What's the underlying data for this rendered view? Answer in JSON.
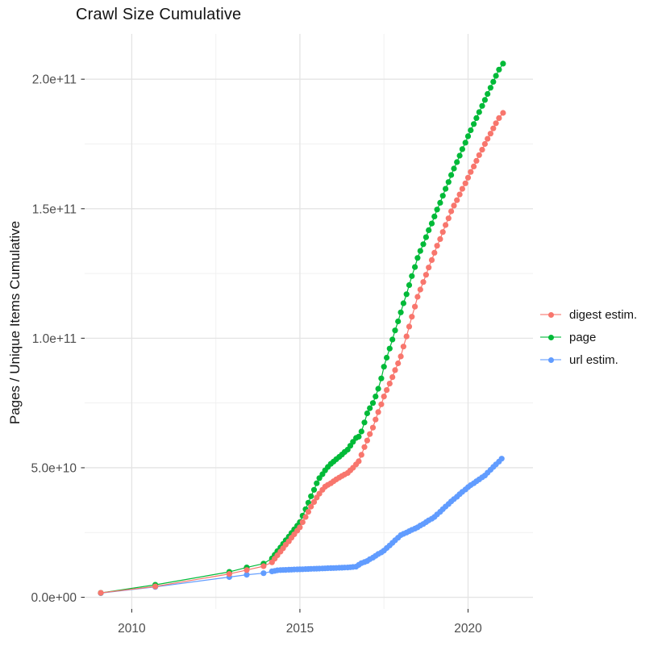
{
  "header": {
    "title": "Crawl Size Cumulative"
  },
  "axes": {
    "y_title": "Pages / Unique Items Cumulative",
    "x_title": ""
  },
  "colors": {
    "background": "#ffffff",
    "grid_major": "#e4e4e4",
    "grid_minor": "#f1f1f1",
    "tick_mark": "#333333",
    "tick_label": "#4d4d4d",
    "digest": "#F8766D",
    "page": "#00BA38",
    "url": "#619CFF"
  },
  "chart_data": {
    "type": "line",
    "title": "Crawl Size Cumulative",
    "xlabel": "",
    "ylabel": "Pages / Unique Items Cumulative",
    "values_unit": "1e9 items (values below are billions; axis shown in scientific notation)",
    "grid": true,
    "legend_position": "right",
    "x_domain": [
      2008.6,
      2021.93
    ],
    "y_domain": [
      -4.5,
      217.5
    ],
    "x_ticks": [
      {
        "value": 2010,
        "label": "2010"
      },
      {
        "value": 2015,
        "label": "2015"
      },
      {
        "value": 2020,
        "label": "2020"
      }
    ],
    "x_minor_ticks": [
      2012.5,
      2017.5
    ],
    "y_ticks": [
      {
        "value": 0,
        "label": "0.0e+00"
      },
      {
        "value": 50,
        "label": "5.0e+10"
      },
      {
        "value": 100,
        "label": "1.0e+11"
      },
      {
        "value": 150,
        "label": "1.5e+11"
      },
      {
        "value": 200,
        "label": "2.0e+11"
      }
    ],
    "y_minor_ticks": [
      25,
      75,
      125,
      175
    ],
    "draw_order": [
      2,
      1,
      0
    ],
    "series": [
      {
        "name": "digest estim.",
        "color": "#F8766D",
        "points": [
          [
            2009.08,
            1.7
          ],
          [
            2010.7,
            4.2
          ],
          [
            2012.9,
            9.0
          ],
          [
            2013.42,
            10.5
          ],
          [
            2013.92,
            12.0
          ],
          [
            2014.17,
            13.5
          ],
          [
            2014.25,
            14.9
          ],
          [
            2014.33,
            16.2
          ],
          [
            2014.42,
            17.6
          ],
          [
            2014.5,
            18.9
          ],
          [
            2014.58,
            20.3
          ],
          [
            2014.67,
            21.6
          ],
          [
            2014.75,
            23.0
          ],
          [
            2014.83,
            24.3
          ],
          [
            2014.92,
            25.7
          ],
          [
            2015.0,
            27.0
          ],
          [
            2015.08,
            29.0
          ],
          [
            2015.17,
            31.0
          ],
          [
            2015.25,
            33.0
          ],
          [
            2015.33,
            35.0
          ],
          [
            2015.42,
            36.8
          ],
          [
            2015.5,
            38.5
          ],
          [
            2015.58,
            40.0
          ],
          [
            2015.67,
            41.5
          ],
          [
            2015.75,
            42.7
          ],
          [
            2015.83,
            43.4
          ],
          [
            2015.92,
            44.0
          ],
          [
            2016.0,
            44.8
          ],
          [
            2016.08,
            45.5
          ],
          [
            2016.17,
            46.2
          ],
          [
            2016.25,
            46.8
          ],
          [
            2016.33,
            47.4
          ],
          [
            2016.42,
            48.0
          ],
          [
            2016.5,
            49.0
          ],
          [
            2016.58,
            50.0
          ],
          [
            2016.67,
            51.3
          ],
          [
            2016.75,
            52.5
          ],
          [
            2016.83,
            55.0
          ],
          [
            2016.92,
            58.0
          ],
          [
            2017.0,
            60.5
          ],
          [
            2017.08,
            63.0
          ],
          [
            2017.17,
            65.5
          ],
          [
            2017.25,
            68.6
          ],
          [
            2017.33,
            71.5
          ],
          [
            2017.42,
            74.5
          ],
          [
            2017.5,
            77.5
          ],
          [
            2017.58,
            80.0
          ],
          [
            2017.67,
            82.5
          ],
          [
            2017.75,
            85.0
          ],
          [
            2017.83,
            87.7
          ],
          [
            2017.92,
            90.3
          ],
          [
            2018.0,
            93.0
          ],
          [
            2018.08,
            96.8
          ],
          [
            2018.17,
            100.7
          ],
          [
            2018.25,
            104.5
          ],
          [
            2018.33,
            108.3
          ],
          [
            2018.42,
            112.2
          ],
          [
            2018.5,
            116.0
          ],
          [
            2018.58,
            118.8
          ],
          [
            2018.67,
            121.7
          ],
          [
            2018.75,
            124.5
          ],
          [
            2018.83,
            127.3
          ],
          [
            2018.92,
            130.2
          ],
          [
            2019.0,
            133.0
          ],
          [
            2019.08,
            135.7
          ],
          [
            2019.17,
            138.3
          ],
          [
            2019.25,
            141.0
          ],
          [
            2019.33,
            143.7
          ],
          [
            2019.42,
            146.3
          ],
          [
            2019.5,
            149.0
          ],
          [
            2019.58,
            151.2
          ],
          [
            2019.67,
            153.3
          ],
          [
            2019.75,
            155.5
          ],
          [
            2019.83,
            157.7
          ],
          [
            2019.92,
            159.8
          ],
          [
            2020.0,
            162.0
          ],
          [
            2020.08,
            164.2
          ],
          [
            2020.17,
            166.3
          ],
          [
            2020.25,
            168.5
          ],
          [
            2020.33,
            170.7
          ],
          [
            2020.42,
            172.8
          ],
          [
            2020.5,
            175.0
          ],
          [
            2020.58,
            177.0
          ],
          [
            2020.67,
            179.0
          ],
          [
            2020.75,
            181.0
          ],
          [
            2020.83,
            183.0
          ],
          [
            2020.92,
            185.0
          ],
          [
            2021.04,
            187.0
          ]
        ]
      },
      {
        "name": "page",
        "color": "#00BA38",
        "points": [
          [
            2009.08,
            1.7
          ],
          [
            2010.7,
            4.8
          ],
          [
            2012.9,
            9.8
          ],
          [
            2013.42,
            11.5
          ],
          [
            2013.92,
            13.0
          ],
          [
            2014.17,
            15.0
          ],
          [
            2014.25,
            16.4
          ],
          [
            2014.33,
            17.8
          ],
          [
            2014.42,
            19.2
          ],
          [
            2014.5,
            20.6
          ],
          [
            2014.58,
            22.0
          ],
          [
            2014.67,
            23.4
          ],
          [
            2014.75,
            24.8
          ],
          [
            2014.83,
            26.2
          ],
          [
            2014.92,
            27.6
          ],
          [
            2015.0,
            29.0
          ],
          [
            2015.08,
            31.5
          ],
          [
            2015.17,
            34.0
          ],
          [
            2015.25,
            36.5
          ],
          [
            2015.33,
            39.0
          ],
          [
            2015.42,
            41.5
          ],
          [
            2015.5,
            44.0
          ],
          [
            2015.58,
            46.0
          ],
          [
            2015.67,
            47.5
          ],
          [
            2015.75,
            49.0
          ],
          [
            2015.83,
            50.3
          ],
          [
            2015.92,
            51.5
          ],
          [
            2016.0,
            52.4
          ],
          [
            2016.08,
            53.3
          ],
          [
            2016.17,
            54.2
          ],
          [
            2016.25,
            55.1
          ],
          [
            2016.33,
            56.1
          ],
          [
            2016.42,
            57.0
          ],
          [
            2016.5,
            58.5
          ],
          [
            2016.58,
            60.0
          ],
          [
            2016.67,
            61.5
          ],
          [
            2016.75,
            62.0
          ],
          [
            2016.83,
            64.0
          ],
          [
            2016.92,
            67.5
          ],
          [
            2017.0,
            71.0
          ],
          [
            2017.08,
            73.0
          ],
          [
            2017.17,
            75.0
          ],
          [
            2017.25,
            77.5
          ],
          [
            2017.33,
            80.5
          ],
          [
            2017.42,
            84.5
          ],
          [
            2017.5,
            89.0
          ],
          [
            2017.58,
            92.5
          ],
          [
            2017.67,
            96.0
          ],
          [
            2017.75,
            99.5
          ],
          [
            2017.83,
            103.0
          ],
          [
            2017.92,
            106.5
          ],
          [
            2018.0,
            110.0
          ],
          [
            2018.08,
            113.5
          ],
          [
            2018.17,
            117.0
          ],
          [
            2018.25,
            120.5
          ],
          [
            2018.33,
            124.0
          ],
          [
            2018.42,
            127.5
          ],
          [
            2018.5,
            131.0
          ],
          [
            2018.58,
            133.7
          ],
          [
            2018.67,
            136.3
          ],
          [
            2018.75,
            139.0
          ],
          [
            2018.83,
            141.7
          ],
          [
            2018.92,
            144.3
          ],
          [
            2019.0,
            147.0
          ],
          [
            2019.08,
            149.7
          ],
          [
            2019.17,
            152.3
          ],
          [
            2019.25,
            155.0
          ],
          [
            2019.33,
            157.7
          ],
          [
            2019.42,
            160.3
          ],
          [
            2019.5,
            163.0
          ],
          [
            2019.58,
            165.5
          ],
          [
            2019.67,
            168.0
          ],
          [
            2019.75,
            170.5
          ],
          [
            2019.83,
            173.0
          ],
          [
            2019.92,
            175.5
          ],
          [
            2020.0,
            178.0
          ],
          [
            2020.08,
            180.3
          ],
          [
            2020.17,
            182.7
          ],
          [
            2020.25,
            185.0
          ],
          [
            2020.33,
            187.3
          ],
          [
            2020.42,
            189.7
          ],
          [
            2020.5,
            192.0
          ],
          [
            2020.58,
            194.3
          ],
          [
            2020.67,
            196.7
          ],
          [
            2020.75,
            199.0
          ],
          [
            2020.83,
            201.3
          ],
          [
            2020.92,
            203.7
          ],
          [
            2021.04,
            206.0
          ]
        ]
      },
      {
        "name": "url estim.",
        "color": "#619CFF",
        "points": [
          [
            2009.08,
            1.6
          ],
          [
            2010.7,
            4.0
          ],
          [
            2012.9,
            7.8
          ],
          [
            2013.42,
            8.7
          ],
          [
            2013.92,
            9.3
          ],
          [
            2014.17,
            10.0
          ],
          [
            2014.25,
            10.2
          ],
          [
            2014.33,
            10.4
          ],
          [
            2014.42,
            10.5
          ],
          [
            2014.5,
            10.54
          ],
          [
            2014.58,
            10.58
          ],
          [
            2014.67,
            10.63
          ],
          [
            2014.75,
            10.67
          ],
          [
            2014.83,
            10.71
          ],
          [
            2014.92,
            10.75
          ],
          [
            2015.0,
            10.79
          ],
          [
            2015.08,
            10.83
          ],
          [
            2015.17,
            10.88
          ],
          [
            2015.25,
            10.92
          ],
          [
            2015.33,
            10.96
          ],
          [
            2015.42,
            11.0
          ],
          [
            2015.5,
            11.04
          ],
          [
            2015.58,
            11.08
          ],
          [
            2015.67,
            11.13
          ],
          [
            2015.75,
            11.17
          ],
          [
            2015.83,
            11.21
          ],
          [
            2015.92,
            11.25
          ],
          [
            2016.0,
            11.29
          ],
          [
            2016.08,
            11.33
          ],
          [
            2016.17,
            11.38
          ],
          [
            2016.25,
            11.42
          ],
          [
            2016.33,
            11.46
          ],
          [
            2016.42,
            11.5
          ],
          [
            2016.5,
            11.6
          ],
          [
            2016.58,
            11.7
          ],
          [
            2016.67,
            11.8
          ],
          [
            2016.75,
            12.5
          ],
          [
            2016.83,
            13.2
          ],
          [
            2016.92,
            13.6
          ],
          [
            2017.0,
            14.0
          ],
          [
            2017.08,
            14.7
          ],
          [
            2017.17,
            15.3
          ],
          [
            2017.25,
            16.0
          ],
          [
            2017.33,
            16.7
          ],
          [
            2017.42,
            17.3
          ],
          [
            2017.5,
            18.0
          ],
          [
            2017.58,
            19.0
          ],
          [
            2017.67,
            20.0
          ],
          [
            2017.75,
            21.0
          ],
          [
            2017.83,
            22.0
          ],
          [
            2017.92,
            23.0
          ],
          [
            2018.0,
            24.0
          ],
          [
            2018.08,
            24.5
          ],
          [
            2018.17,
            25.0
          ],
          [
            2018.25,
            25.5
          ],
          [
            2018.33,
            26.0
          ],
          [
            2018.42,
            26.5
          ],
          [
            2018.5,
            27.0
          ],
          [
            2018.58,
            27.7
          ],
          [
            2018.67,
            28.3
          ],
          [
            2018.75,
            29.0
          ],
          [
            2018.83,
            29.7
          ],
          [
            2018.92,
            30.3
          ],
          [
            2019.0,
            31.0
          ],
          [
            2019.08,
            32.0
          ],
          [
            2019.17,
            33.0
          ],
          [
            2019.25,
            34.0
          ],
          [
            2019.33,
            35.0
          ],
          [
            2019.42,
            36.0
          ],
          [
            2019.5,
            37.0
          ],
          [
            2019.58,
            37.9
          ],
          [
            2019.67,
            38.8
          ],
          [
            2019.75,
            39.8
          ],
          [
            2019.83,
            40.7
          ],
          [
            2019.92,
            41.6
          ],
          [
            2020.0,
            42.5
          ],
          [
            2020.08,
            43.3
          ],
          [
            2020.17,
            44.0
          ],
          [
            2020.25,
            44.8
          ],
          [
            2020.33,
            45.5
          ],
          [
            2020.42,
            46.3
          ],
          [
            2020.5,
            47.0
          ],
          [
            2020.58,
            48.1
          ],
          [
            2020.67,
            49.2
          ],
          [
            2020.75,
            50.3
          ],
          [
            2020.83,
            51.3
          ],
          [
            2020.92,
            52.4
          ],
          [
            2021.0,
            53.5
          ]
        ]
      }
    ]
  },
  "legend": {
    "entries": [
      {
        "label": "digest estim.",
        "color": "#F8766D"
      },
      {
        "label": "page",
        "color": "#00BA38"
      },
      {
        "label": "url estim.",
        "color": "#619CFF"
      }
    ]
  }
}
